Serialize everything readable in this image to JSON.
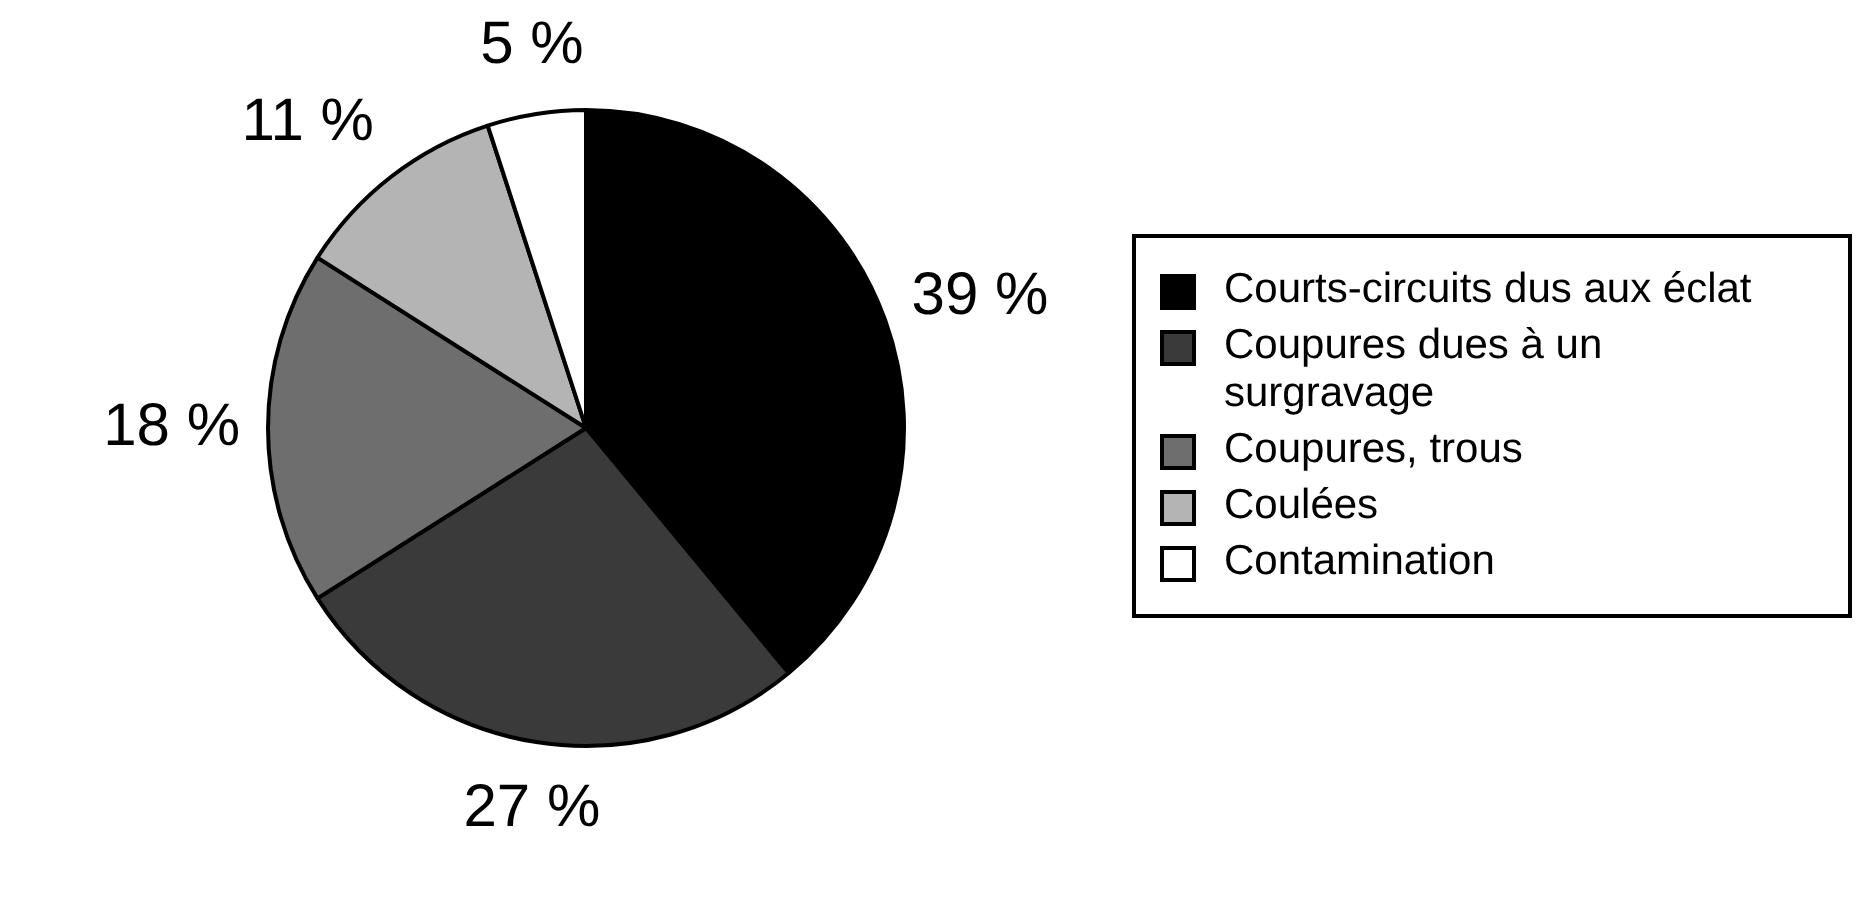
{
  "chart_data": {
    "type": "pie",
    "categories": [
      "Courts-circuits dus aux éclat",
      "Coupures dues à un surgravage",
      "Coupures, trous",
      "Coulées",
      "Contamination"
    ],
    "values": [
      39,
      27,
      18,
      11,
      5
    ],
    "colors": [
      "#000000",
      "#3a3a3a",
      "#6e6e6e",
      "#b4b4b4",
      "#ffffff"
    ],
    "value_labels": [
      "39 %",
      "27 %",
      "18 %",
      "11 %",
      "5 %"
    ],
    "legend": "right"
  }
}
